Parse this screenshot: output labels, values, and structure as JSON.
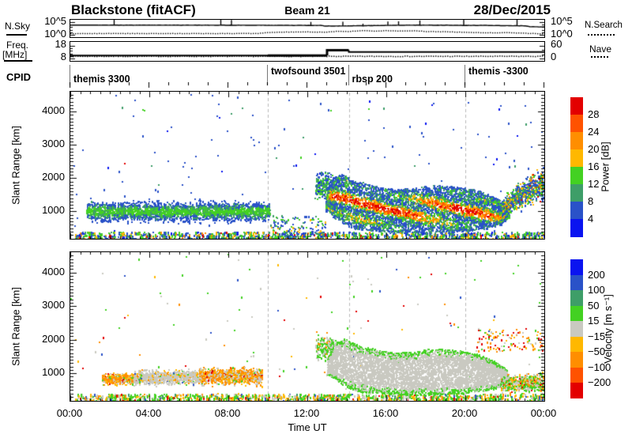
{
  "header": {
    "station": "Blackstone (fitACF)",
    "beam": "Beam 21",
    "date": "28/Dec/2015"
  },
  "noise_panel": {
    "left_label": "N.Sky",
    "right_label": "N.Search",
    "left_ticks": [
      "10^5",
      "10^0"
    ],
    "right_ticks": [
      "10^5",
      "10^0"
    ]
  },
  "freq_panel": {
    "left_label_line1": "Freq.",
    "left_label_line2": "[MHz]",
    "right_label": "Nave",
    "left_ticks": [
      "18",
      "8"
    ],
    "right_ticks": [
      "60",
      "0"
    ]
  },
  "cpid": {
    "label": "CPID",
    "segments": [
      {
        "label": "themis 3300",
        "start_hour": 0
      },
      {
        "label": "twofsound 3501",
        "start_hour": 10
      },
      {
        "label": "rbsp 200",
        "start_hour": 14.1
      },
      {
        "label": "themis -3300",
        "start_hour": 20
      }
    ]
  },
  "axes": {
    "x_label": "Time UT",
    "x_tick_hours": [
      0,
      4,
      8,
      12,
      16,
      20,
      24
    ],
    "x_tick_labels": [
      "00:00",
      "04:00",
      "08:00",
      "12:00",
      "16:00",
      "20:00",
      "00:00"
    ],
    "y_label": "Slant Range [km]",
    "y_ticks": [
      1000,
      2000,
      3000,
      4000
    ],
    "range_min_km": 180,
    "range_max_km": 4600
  },
  "palette": {
    "red": "#e30000",
    "orange2": "#ff5200",
    "orange1": "#ff8e00",
    "yellow": "#ffb800",
    "green": "#43d122",
    "teal": "#3e9e68",
    "blue2": "#2a52c8",
    "blue1": "#0a14f0",
    "gray": "#c9c9c1"
  },
  "power_colorbar": {
    "label": "Power  [dB]",
    "tick_labels": [
      "28",
      "24",
      "20",
      "16",
      "12",
      "8",
      "4"
    ],
    "colors_top_to_bottom": [
      "red",
      "orange2",
      "orange1",
      "yellow",
      "green",
      "teal",
      "blue2",
      "blue1"
    ]
  },
  "velocity_colorbar": {
    "label": "Velocity  [m s⁻¹]",
    "tick_labels": [
      "200",
      "100",
      "50",
      "15",
      "−15",
      "−50",
      "−100",
      "−200"
    ],
    "colors_top_to_bottom": [
      "blue1",
      "blue2",
      "teal",
      "green",
      "gray",
      "yellow",
      "orange1",
      "orange2",
      "red"
    ]
  },
  "chart_data": {
    "type": "heatmap",
    "description": "SuperDARN range-time-intensity plot, Blackstone radar, fitACF, Beam 21, 28/Dec/2015; top strip charts of sky/search noise and frequency/Nave; two RTI panels (Power dB, Velocity m/s)",
    "time_axis_hours": [
      0,
      24
    ],
    "range_axis_km": [
      180,
      4600
    ],
    "mode_boundary_hours": [
      10,
      14.1,
      20
    ],
    "noise_series": {
      "nsky_log10": [
        [
          0,
          3.85
        ],
        [
          2,
          3.8
        ],
        [
          4,
          3.82
        ],
        [
          6,
          3.8
        ],
        [
          8,
          3.78
        ],
        [
          10,
          3.75
        ],
        [
          12.7,
          3.7
        ],
        [
          12.9,
          3.45
        ],
        [
          14,
          3.5
        ],
        [
          15,
          3.6
        ],
        [
          16,
          3.72
        ],
        [
          17,
          3.78
        ],
        [
          18,
          3.82
        ],
        [
          19,
          3.78
        ],
        [
          20,
          3.7
        ],
        [
          21,
          3.72
        ],
        [
          22,
          3.62
        ],
        [
          23,
          3.55
        ],
        [
          23.3,
          3.2
        ],
        [
          24,
          3.1
        ]
      ],
      "nsearch_log10": [
        [
          0,
          0.7
        ],
        [
          2,
          0.72
        ],
        [
          4,
          0.7
        ],
        [
          6,
          0.72
        ],
        [
          8,
          0.7
        ],
        [
          9.5,
          0.75
        ],
        [
          10,
          1.1
        ],
        [
          11,
          1.3
        ],
        [
          12,
          1.35
        ],
        [
          12.9,
          1.2
        ],
        [
          13.5,
          1.6
        ],
        [
          14,
          1.5
        ],
        [
          14.8,
          1.9
        ],
        [
          15.5,
          1.6
        ],
        [
          16,
          1.9
        ],
        [
          16.5,
          1.7
        ],
        [
          17.5,
          1.8
        ],
        [
          18,
          1.5
        ],
        [
          19,
          1.4
        ],
        [
          20,
          1.2
        ],
        [
          21,
          1.0
        ],
        [
          22,
          1.05
        ],
        [
          23,
          0.8
        ],
        [
          24,
          0.6
        ]
      ],
      "axis_log10": [
        0,
        5
      ]
    },
    "freq_series": {
      "freq_mhz_steps": [
        {
          "t": [
            0,
            10
          ],
          "f": 10.4,
          "w": 2
        },
        {
          "t": [
            10,
            13
          ],
          "f": 10.35,
          "w": 3
        },
        {
          "t": [
            13,
            14.1
          ],
          "f": 14.6,
          "w": 3
        },
        {
          "t": [
            14.1,
            24
          ],
          "f": 13.2,
          "w": 2
        }
      ],
      "freq_axis_mhz": [
        8,
        18
      ],
      "nave": [
        [
          0,
          13
        ],
        [
          10,
          13
        ],
        [
          13,
          13
        ],
        [
          24,
          13
        ]
      ],
      "nave_axis": [
        0,
        60
      ]
    },
    "panels": [
      {
        "id": "power",
        "units": "dB",
        "bin_bounds": [
          4,
          8,
          12,
          16,
          20,
          24,
          28
        ],
        "clusters": [
          {
            "name": "sparse-high-range",
            "t": [
              0,
              24
            ],
            "r": [
              400,
              4550
            ],
            "n": 150,
            "shape": "uniform",
            "colors": {
              "blue2": 0.75,
              "blue1": 0.1,
              "teal": 0.08,
              "green": 0.05,
              "red": 0.02
            }
          },
          {
            "name": "meteor-band",
            "t": [
              0.2,
              24
            ],
            "r": [
              185,
              400
            ],
            "n": 950,
            "shape": "uniform",
            "streak": true,
            "colors": {
              "blue2": 0.3,
              "green": 0.28,
              "teal": 0.14,
              "yellow": 0.12,
              "orange1": 0.08,
              "blue1": 0.05,
              "red": 0.03
            }
          },
          {
            "name": "morning-band",
            "t": [
              0.8,
              10.1
            ],
            "r": [
              620,
              1420
            ],
            "n": 2600,
            "shape": "gauss",
            "jitter": 0.45,
            "gradient": [
              "blue2",
              "blue2",
              "blue2",
              "teal",
              "green"
            ]
          },
          {
            "name": "pre-noon-scatter",
            "t": [
              10.1,
              12.9
            ],
            "r": [
              185,
              900
            ],
            "n": 160,
            "shape": "uniform",
            "colors": {
              "blue2": 0.5,
              "green": 0.25,
              "teal": 0.15,
              "yellow": 0.1
            }
          },
          {
            "name": "blob-left-edge",
            "t": [
              12.4,
              13.3
            ],
            "r": [
              1300,
              2300
            ],
            "n": 260,
            "shape": "gauss",
            "colors": {
              "blue2": 0.45,
              "teal": 0.25,
              "green": 0.25,
              "blue1": 0.05
            }
          },
          {
            "name": "main-blob",
            "t": [
              12.9,
              22.2
            ],
            "n": 5400,
            "shape": "uniform",
            "wave": true,
            "jitter": 0.5,
            "gradient": [
              "blue2",
              "teal",
              "green",
              "yellow",
              "orange1",
              "orange2",
              "red"
            ],
            "envelope": {
              "top": [
                [
                  12.9,
                  1500
                ],
                [
                  13.3,
                  2050
                ],
                [
                  13.8,
                  2150
                ],
                [
                  14.3,
                  1950
                ],
                [
                  15,
                  1850
                ],
                [
                  15.6,
                  1750
                ],
                [
                  16.5,
                  1680
                ],
                [
                  17.5,
                  1720
                ],
                [
                  18.3,
                  1820
                ],
                [
                  19.2,
                  1780
                ],
                [
                  20,
                  1720
                ],
                [
                  20.6,
                  1650
                ],
                [
                  21.2,
                  1520
                ],
                [
                  21.8,
                  1320
                ],
                [
                  22.2,
                  1120
                ]
              ],
              "bottom": [
                [
                  12.9,
                  1050
                ],
                [
                  13.4,
                  800
                ],
                [
                  13.9,
                  620
                ],
                [
                  14.4,
                  500
                ],
                [
                  15,
                  450
                ],
                [
                  16,
                  410
                ],
                [
                  17,
                  385
                ],
                [
                  18,
                  380
                ],
                [
                  19,
                  400
                ],
                [
                  20,
                  430
                ],
                [
                  21,
                  500
                ],
                [
                  21.7,
                  620
                ],
                [
                  22.2,
                  820
                ]
              ]
            }
          },
          {
            "name": "right-rise",
            "t": [
              21.8,
              24
            ],
            "n": 750,
            "shape": "gauss",
            "colors": {
              "blue2": 0.38,
              "teal": 0.2,
              "green": 0.2,
              "yellow": 0.1,
              "orange1": 0.08,
              "red": 0.04
            },
            "envelope": {
              "top": [
                [
                  21.8,
                  1450
                ],
                [
                  22.6,
                  1950
                ],
                [
                  23.3,
                  2250
                ],
                [
                  24,
                  2450
                ]
              ],
              "bottom": [
                [
                  21.8,
                  750
                ],
                [
                  22.6,
                  950
                ],
                [
                  23.3,
                  1100
                ],
                [
                  24,
                  1250
                ]
              ]
            }
          }
        ]
      },
      {
        "id": "velocity",
        "units": "m/s",
        "bin_bounds": [
          -200,
          -100,
          -50,
          -15,
          15,
          50,
          100,
          200
        ],
        "clusters": [
          {
            "name": "sparse-high-range",
            "t": [
              0,
              24
            ],
            "r": [
              400,
              4550
            ],
            "n": 130,
            "shape": "uniform",
            "colors": {
              "green": 0.3,
              "gray": 0.2,
              "blue2": 0.15,
              "red": 0.12,
              "orange1": 0.12,
              "yellow": 0.11
            }
          },
          {
            "name": "meteor-band",
            "t": [
              0.2,
              24
            ],
            "r": [
              185,
              400
            ],
            "n": 1050,
            "shape": "uniform",
            "streak": true,
            "colors": {
              "green": 0.42,
              "gray": 0.2,
              "yellow": 0.15,
              "orange1": 0.12,
              "blue2": 0.05,
              "red": 0.03,
              "teal": 0.03
            }
          },
          {
            "name": "morning-orange",
            "t": [
              1.6,
              3.4
            ],
            "r": [
              640,
              1080
            ],
            "n": 520,
            "shape": "gauss",
            "colors": {
              "orange1": 0.5,
              "yellow": 0.25,
              "gray": 0.15,
              "green": 0.06,
              "red": 0.04
            }
          },
          {
            "name": "morning-gray",
            "t": [
              3.2,
              6.7
            ],
            "r": [
              620,
              1180
            ],
            "n": 950,
            "shape": "gauss",
            "colors": {
              "gray": 0.8,
              "yellow": 0.08,
              "orange1": 0.05,
              "green": 0.05,
              "blue2": 0.02
            }
          },
          {
            "name": "morning-orange-2",
            "t": [
              6.5,
              9.7
            ],
            "r": [
              600,
              1260
            ],
            "n": 950,
            "shape": "gauss",
            "colors": {
              "orange1": 0.42,
              "yellow": 0.2,
              "gray": 0.28,
              "green": 0.06,
              "red": 0.04
            }
          },
          {
            "name": "blob-left-edge",
            "t": [
              12.4,
              13.3
            ],
            "r": [
              1300,
              2300
            ],
            "n": 200,
            "shape": "gauss",
            "colors": {
              "green": 0.55,
              "gray": 0.35,
              "orange1": 0.1
            }
          },
          {
            "name": "main-blob",
            "t": [
              13,
              22.1
            ],
            "n": 5400,
            "shape": "uniform",
            "jitter": 0.35,
            "gradient": [
              "green",
              "gray",
              "gray",
              "gray",
              "gray",
              "gray"
            ],
            "envelope": {
              "top": [
                [
                  13,
                  1450
                ],
                [
                  13.4,
                  1950
                ],
                [
                  13.9,
                  2050
                ],
                [
                  14.4,
                  1880
                ],
                [
                  15,
                  1780
                ],
                [
                  15.6,
                  1700
                ],
                [
                  16.5,
                  1620
                ],
                [
                  17.5,
                  1660
                ],
                [
                  18.3,
                  1750
                ],
                [
                  19.2,
                  1720
                ],
                [
                  20,
                  1660
                ],
                [
                  20.6,
                  1580
                ],
                [
                  21.2,
                  1450
                ],
                [
                  21.8,
                  1250
                ],
                [
                  22.1,
                  1080
                ]
              ],
              "bottom": [
                [
                  13,
                  1000
                ],
                [
                  13.5,
                  780
                ],
                [
                  14,
                  600
                ],
                [
                  14.5,
                  480
                ],
                [
                  15,
                  440
                ],
                [
                  16,
                  400
                ],
                [
                  17,
                  375
                ],
                [
                  18,
                  370
                ],
                [
                  19,
                  390
                ],
                [
                  20,
                  420
                ],
                [
                  21,
                  490
                ],
                [
                  21.7,
                  610
                ],
                [
                  22.1,
                  800
                ]
              ]
            }
          },
          {
            "name": "top-right-dots",
            "t": [
              20.5,
              24
            ],
            "r": [
              1650,
              2350
            ],
            "n": 120,
            "shape": "uniform",
            "colors": {
              "orange1": 0.3,
              "red": 0.25,
              "gray": 0.2,
              "yellow": 0.15,
              "green": 0.1
            }
          },
          {
            "name": "right-bottom-green",
            "t": [
              21.8,
              24
            ],
            "r": [
              390,
              1050
            ],
            "n": 620,
            "shape": "gauss",
            "colors": {
              "green": 0.36,
              "gray": 0.3,
              "orange1": 0.18,
              "yellow": 0.1,
              "red": 0.06
            }
          }
        ]
      }
    ]
  }
}
